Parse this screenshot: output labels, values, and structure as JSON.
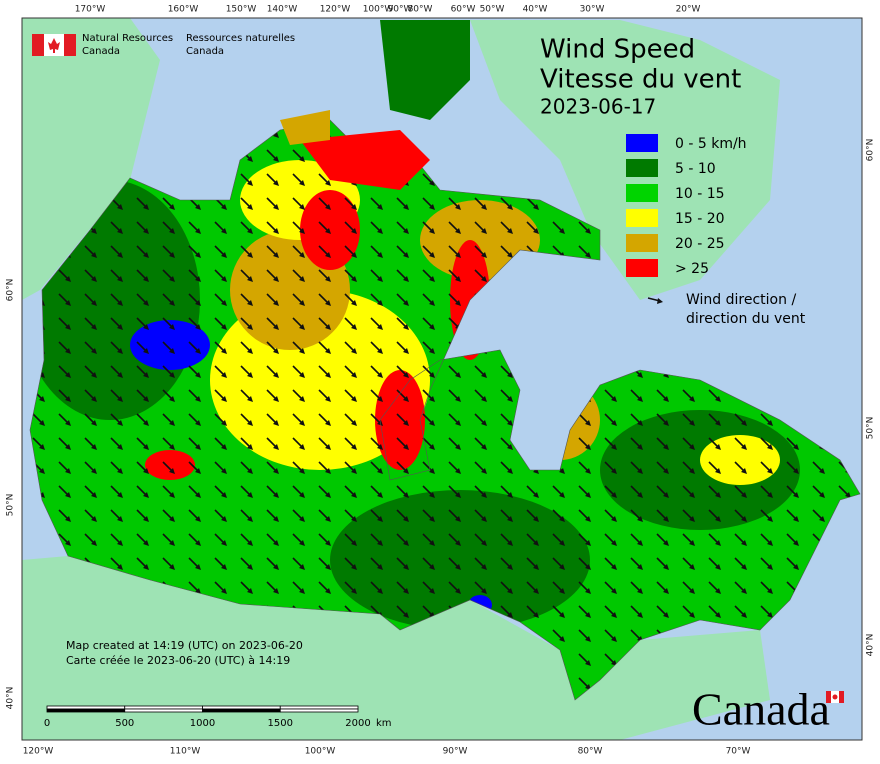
{
  "header": {
    "agency_en": [
      "Natural Resources",
      "Canada"
    ],
    "agency_fr": [
      "Ressources naturelles",
      "Canada"
    ]
  },
  "title": {
    "en": "Wind Speed",
    "fr": "Vitesse du vent",
    "date": "2023-06-17"
  },
  "legend": {
    "items": [
      {
        "label": "0 - 5 km/h",
        "color": "#0000ff"
      },
      {
        "label": "5 - 10",
        "color": "#007a00"
      },
      {
        "label": "10 - 15",
        "color": "#00d400"
      },
      {
        "label": "15 - 20",
        "color": "#ffff00"
      },
      {
        "label": "20 - 25",
        "color": "#d4a600"
      },
      {
        "label": "> 25",
        "color": "#ff0000"
      }
    ],
    "wind_direction": [
      "Wind direction /",
      "direction du vent"
    ]
  },
  "footer": {
    "created_en": "Map created at 14:19 (UTC) on 2023-06-20",
    "created_fr": "Carte créée le 2023-06-20 (UTC) à 14:19"
  },
  "scale_bar": {
    "ticks": [
      "0",
      "500",
      "1000",
      "1500",
      "2000"
    ],
    "unit": "km"
  },
  "graticule": {
    "top": [
      "170°W",
      "160°W",
      "150°W",
      "140°W",
      "120°W",
      "100°W",
      "90°W",
      "80°W",
      "60°W",
      "50°W",
      "40°W",
      "30°W",
      "20°W"
    ],
    "bottom": [
      "120°W",
      "110°W",
      "100°W",
      "90°W",
      "80°W",
      "70°W"
    ],
    "left": [
      "60°N",
      "50°N",
      "40°N"
    ],
    "right": [
      "60°N",
      "50°N",
      "40°N"
    ]
  },
  "wordmark": "Canada"
}
